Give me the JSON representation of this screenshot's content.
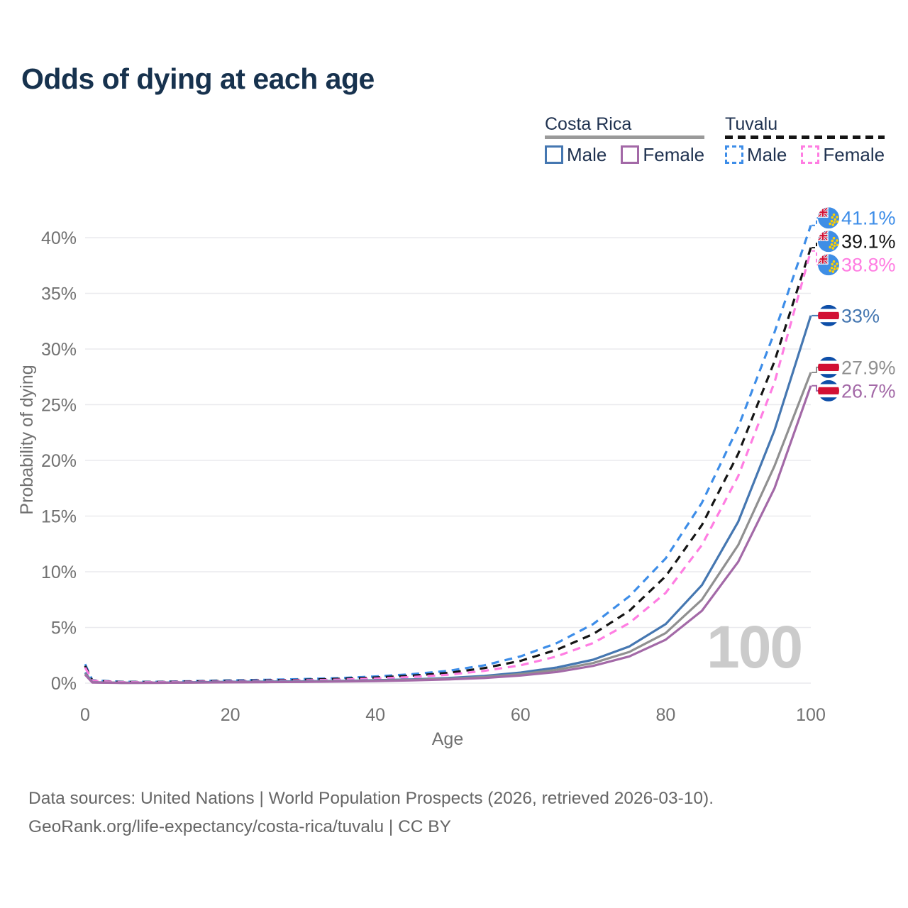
{
  "title": "Odds of dying at each age",
  "watermark": "100",
  "legend": {
    "groups": [
      {
        "name": "Costa Rica",
        "line_style": "solid",
        "line_color": "#9a9a9a",
        "items": [
          {
            "label": "Male",
            "color": "#4577b1",
            "dashed": false
          },
          {
            "label": "Female",
            "color": "#a369a7",
            "dashed": false
          }
        ]
      },
      {
        "name": "Tuvalu",
        "line_style": "dashed",
        "line_color": "#141414",
        "items": [
          {
            "label": "Male",
            "color": "#3d8de8",
            "dashed": true
          },
          {
            "label": "Female",
            "color": "#ff7de2",
            "dashed": true
          }
        ]
      }
    ]
  },
  "chart_data": {
    "type": "line",
    "title": "Odds of dying at each age",
    "xlabel": "Age",
    "ylabel": "Probability of dying",
    "xlim": [
      0,
      100
    ],
    "ylim": [
      0,
      42.5
    ],
    "grid": "horizontal",
    "x_ticks": [
      0,
      20,
      40,
      60,
      80,
      100
    ],
    "x_tick_labels": [
      "0",
      "20",
      "40",
      "60",
      "80",
      "100"
    ],
    "y_ticks": [
      0,
      5,
      10,
      15,
      20,
      25,
      30,
      35,
      40
    ],
    "y_tick_labels": [
      "0%",
      "5%",
      "10%",
      "15%",
      "20%",
      "25%",
      "30%",
      "35%",
      "40%"
    ],
    "legend_position": "top-right",
    "x": [
      0,
      1,
      5,
      10,
      15,
      20,
      25,
      30,
      35,
      40,
      45,
      50,
      55,
      60,
      65,
      70,
      75,
      80,
      85,
      90,
      95,
      100
    ],
    "series": [
      {
        "name": "Tuvalu Male",
        "country": "Tuvalu",
        "sex": "Male",
        "color": "#3d8de8",
        "dash": true,
        "flag": "tuvalu",
        "end_label": "41.1%",
        "end_value": 41.1,
        "values": [
          1.7,
          0.25,
          0.12,
          0.12,
          0.18,
          0.25,
          0.3,
          0.36,
          0.45,
          0.6,
          0.8,
          1.1,
          1.6,
          2.4,
          3.6,
          5.3,
          7.8,
          11.2,
          16.2,
          23.0,
          31.5,
          41.1
        ]
      },
      {
        "name": "Tuvalu",
        "country": "Tuvalu",
        "sex": "Both",
        "color": "#141414",
        "dash": true,
        "flag": "tuvalu",
        "end_label": "39.1%",
        "end_value": 39.1,
        "values": [
          1.55,
          0.22,
          0.1,
          0.1,
          0.15,
          0.2,
          0.25,
          0.3,
          0.38,
          0.5,
          0.67,
          0.92,
          1.35,
          2.0,
          3.0,
          4.4,
          6.5,
          9.6,
          14.2,
          20.6,
          28.9,
          39.1
        ]
      },
      {
        "name": "Tuvalu Female",
        "country": "Tuvalu",
        "sex": "Female",
        "color": "#ff7de2",
        "dash": true,
        "flag": "tuvalu",
        "end_label": "38.8%",
        "end_value": 38.8,
        "values": [
          1.4,
          0.2,
          0.09,
          0.09,
          0.12,
          0.16,
          0.2,
          0.25,
          0.31,
          0.41,
          0.55,
          0.75,
          1.1,
          1.6,
          2.4,
          3.6,
          5.4,
          8.1,
          12.4,
          18.6,
          27.0,
          38.8
        ]
      },
      {
        "name": "Costa Rica Male",
        "country": "Costa Rica",
        "sex": "Male",
        "color": "#4577b1",
        "dash": false,
        "flag": "costa-rica",
        "end_label": "33%",
        "end_value": 33,
        "values": [
          0.95,
          0.08,
          0.03,
          0.04,
          0.08,
          0.12,
          0.14,
          0.16,
          0.2,
          0.26,
          0.34,
          0.46,
          0.65,
          0.95,
          1.4,
          2.1,
          3.3,
          5.3,
          8.8,
          14.5,
          22.7,
          33.0
        ]
      },
      {
        "name": "Costa Rica",
        "country": "Costa Rica",
        "sex": "Both",
        "color": "#909090",
        "dash": false,
        "flag": "costa-rica",
        "end_label": "27.9%",
        "end_value": 27.9,
        "values": [
          0.85,
          0.07,
          0.03,
          0.03,
          0.06,
          0.09,
          0.11,
          0.13,
          0.17,
          0.22,
          0.29,
          0.39,
          0.55,
          0.8,
          1.2,
          1.8,
          2.8,
          4.5,
          7.5,
          12.4,
          19.5,
          27.9
        ]
      },
      {
        "name": "Costa Rica Female",
        "country": "Costa Rica",
        "sex": "Female",
        "color": "#a369a7",
        "dash": false,
        "flag": "costa-rica",
        "end_label": "26.7%",
        "end_value": 26.7,
        "values": [
          0.75,
          0.06,
          0.02,
          0.03,
          0.05,
          0.07,
          0.09,
          0.11,
          0.14,
          0.18,
          0.24,
          0.33,
          0.46,
          0.68,
          1.0,
          1.55,
          2.4,
          3.9,
          6.5,
          10.9,
          17.5,
          26.7
        ]
      }
    ]
  },
  "colors": {
    "title": "#17324e",
    "axis_text": "#717171",
    "gridline": "#eaeaee",
    "watermark": "#cbcbcb",
    "footer_text": "#666666"
  },
  "icons": {
    "tuvalu_flag": "tuvalu-flag-icon",
    "costa_rica_flag": "costa-rica-flag-icon"
  },
  "footer": {
    "line1": "Data sources: United Nations | World Population Prospects (2026, retrieved 2026-03-10).",
    "line2": "GeoRank.org/life-expectancy/costa-rica/tuvalu | CC BY"
  }
}
